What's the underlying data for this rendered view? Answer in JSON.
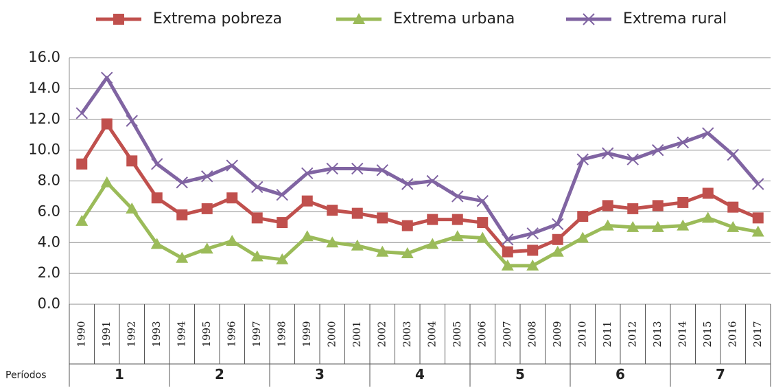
{
  "chart_data": {
    "type": "line",
    "categories": [
      "1990",
      "1991",
      "1992",
      "1993",
      "1994",
      "1995",
      "1996",
      "1997",
      "1998",
      "1999",
      "2000",
      "2001",
      "2002",
      "2003",
      "2004",
      "2005",
      "2006",
      "2007",
      "2008",
      "2009",
      "2010",
      "2011",
      "2012",
      "2013",
      "2014",
      "2015",
      "2016",
      "2017"
    ],
    "series": [
      {
        "name": "Extrema pobreza",
        "color": "#c0504d",
        "marker": "square",
        "values": [
          9.1,
          11.7,
          9.3,
          6.9,
          5.8,
          6.2,
          6.9,
          5.6,
          5.3,
          6.7,
          6.1,
          5.9,
          5.6,
          5.1,
          5.5,
          5.5,
          5.3,
          3.4,
          3.5,
          4.2,
          5.7,
          6.4,
          6.2,
          6.4,
          6.6,
          7.2,
          6.3,
          5.6
        ]
      },
      {
        "name": "Extrema urbana",
        "color": "#9bbb59",
        "marker": "triangle",
        "values": [
          5.4,
          7.9,
          6.2,
          3.9,
          3.0,
          3.6,
          4.1,
          3.1,
          2.9,
          4.4,
          4.0,
          3.8,
          3.4,
          3.3,
          3.9,
          4.4,
          4.3,
          2.5,
          2.5,
          3.4,
          4.3,
          5.1,
          5.0,
          5.0,
          5.1,
          5.6,
          5.0,
          4.7
        ]
      },
      {
        "name": "Extrema rural",
        "color": "#8064a2",
        "marker": "x",
        "values": [
          12.4,
          14.7,
          11.9,
          9.1,
          7.9,
          8.3,
          9.0,
          7.6,
          7.1,
          8.5,
          8.8,
          8.8,
          8.7,
          7.8,
          8.0,
          7.0,
          6.7,
          4.2,
          4.6,
          5.2,
          9.4,
          9.8,
          9.4,
          10.0,
          10.5,
          11.1,
          9.7,
          7.8
        ]
      }
    ],
    "ylim": [
      0,
      16
    ],
    "yticks": [
      {
        "value": 0,
        "label": "0.0"
      },
      {
        "value": 2,
        "label": "2.0"
      },
      {
        "value": 4,
        "label": "4.0"
      },
      {
        "value": 6,
        "label": "6.0"
      },
      {
        "value": 8,
        "label": "8.0"
      },
      {
        "value": 10,
        "label": "10.0"
      },
      {
        "value": 12,
        "label": "12.0"
      },
      {
        "value": 14,
        "label": "14.0"
      },
      {
        "value": 16,
        "label": "16.0"
      }
    ],
    "grid": true,
    "legend": "top",
    "periods": {
      "title": "Períodos",
      "labels": [
        "1",
        "2",
        "3",
        "4",
        "5",
        "6",
        "7"
      ]
    }
  }
}
